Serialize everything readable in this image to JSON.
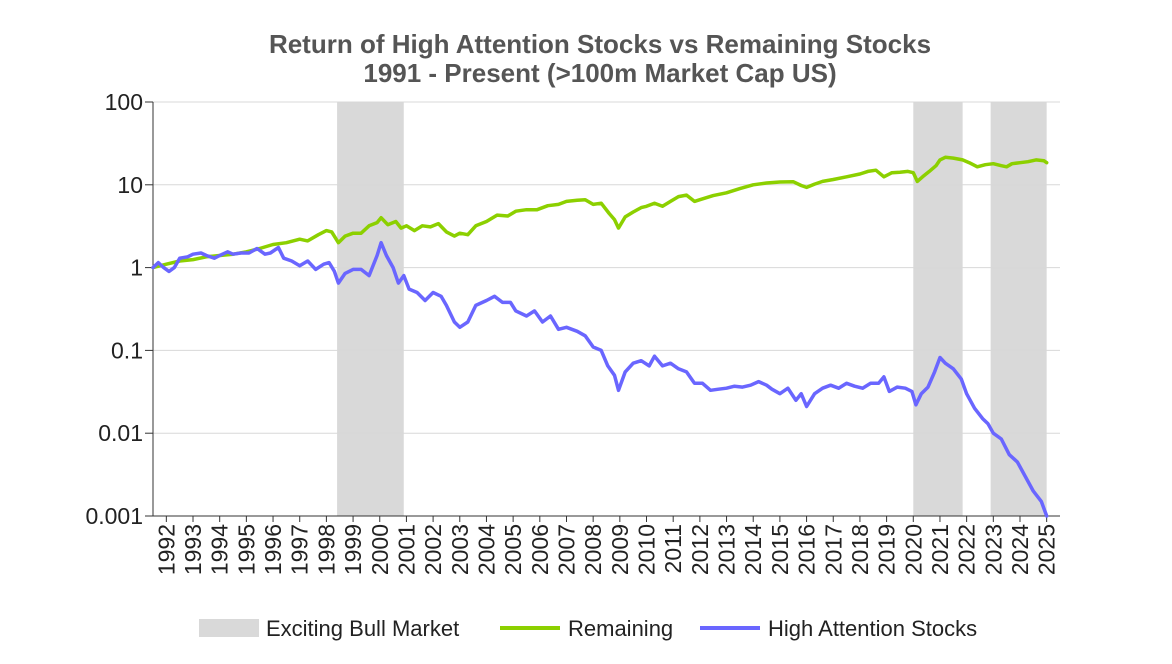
{
  "chart_data": {
    "type": "line",
    "title_line1": "Return of High Attention Stocks vs Remaining Stocks",
    "title_line2": "1991 - Present (>100m Market Cap US)",
    "xlabel": "",
    "ylabel": "",
    "y_scale": "log",
    "ylim": [
      0.001,
      100
    ],
    "xlim": [
      1991.5,
      2025.5
    ],
    "grid": true,
    "legend_position": "bottom",
    "y_ticks": [
      {
        "value": 100,
        "label": "100"
      },
      {
        "value": 10,
        "label": "10"
      },
      {
        "value": 1,
        "label": "1"
      },
      {
        "value": 0.1,
        "label": "0.1"
      },
      {
        "value": 0.01,
        "label": "0.01"
      },
      {
        "value": 0.001,
        "label": "0.001"
      }
    ],
    "x_ticks": [
      "1992",
      "1993",
      "1994",
      "1995",
      "1996",
      "1997",
      "1998",
      "1999",
      "2000",
      "2001",
      "2002",
      "2003",
      "2004",
      "2005",
      "2006",
      "2007",
      "2008",
      "2009",
      "2010",
      "2011",
      "2012",
      "2013",
      "2014",
      "2015",
      "2016",
      "2017",
      "2018",
      "2019",
      "2020",
      "2021",
      "2022",
      "2023",
      "2024",
      "2025"
    ],
    "shaded_periods": {
      "name": "Exciting Bull Market",
      "color": "#d9d9d9",
      "periods": [
        [
          1998.4,
          2000.9
        ],
        [
          2020.0,
          2021.85
        ],
        [
          2022.9,
          2025.0
        ]
      ]
    },
    "series": [
      {
        "name": "Remaining",
        "color": "#8cd000",
        "points": [
          [
            1991.5,
            1.0
          ],
          [
            1992.0,
            1.1
          ],
          [
            1992.5,
            1.2
          ],
          [
            1993.0,
            1.25
          ],
          [
            1993.5,
            1.35
          ],
          [
            1994.0,
            1.4
          ],
          [
            1994.5,
            1.45
          ],
          [
            1995.0,
            1.55
          ],
          [
            1995.5,
            1.7
          ],
          [
            1996.0,
            1.9
          ],
          [
            1996.5,
            2.0
          ],
          [
            1997.0,
            2.2
          ],
          [
            1997.3,
            2.1
          ],
          [
            1997.7,
            2.5
          ],
          [
            1998.0,
            2.8
          ],
          [
            1998.2,
            2.7
          ],
          [
            1998.45,
            2.0
          ],
          [
            1998.7,
            2.4
          ],
          [
            1999.0,
            2.6
          ],
          [
            1999.3,
            2.6
          ],
          [
            1999.6,
            3.2
          ],
          [
            1999.9,
            3.5
          ],
          [
            2000.05,
            4.0
          ],
          [
            2000.3,
            3.3
          ],
          [
            2000.6,
            3.6
          ],
          [
            2000.8,
            3.0
          ],
          [
            2001.0,
            3.2
          ],
          [
            2001.3,
            2.8
          ],
          [
            2001.6,
            3.2
          ],
          [
            2001.9,
            3.1
          ],
          [
            2002.2,
            3.4
          ],
          [
            2002.5,
            2.7
          ],
          [
            2002.8,
            2.4
          ],
          [
            2003.0,
            2.6
          ],
          [
            2003.3,
            2.5
          ],
          [
            2003.6,
            3.2
          ],
          [
            2004.0,
            3.6
          ],
          [
            2004.4,
            4.3
          ],
          [
            2004.8,
            4.2
          ],
          [
            2005.1,
            4.8
          ],
          [
            2005.5,
            5.0
          ],
          [
            2005.9,
            5.0
          ],
          [
            2006.3,
            5.6
          ],
          [
            2006.7,
            5.8
          ],
          [
            2007.0,
            6.3
          ],
          [
            2007.4,
            6.5
          ],
          [
            2007.7,
            6.6
          ],
          [
            2008.0,
            5.8
          ],
          [
            2008.3,
            6.0
          ],
          [
            2008.6,
            4.5
          ],
          [
            2008.8,
            3.8
          ],
          [
            2008.95,
            3.0
          ],
          [
            2009.2,
            4.1
          ],
          [
            2009.5,
            4.7
          ],
          [
            2009.8,
            5.3
          ],
          [
            2010.0,
            5.5
          ],
          [
            2010.3,
            6.0
          ],
          [
            2010.6,
            5.5
          ],
          [
            2010.9,
            6.3
          ],
          [
            2011.2,
            7.2
          ],
          [
            2011.5,
            7.5
          ],
          [
            2011.8,
            6.3
          ],
          [
            2012.0,
            6.6
          ],
          [
            2012.5,
            7.4
          ],
          [
            2013.0,
            8.0
          ],
          [
            2013.5,
            9.0
          ],
          [
            2014.0,
            10.0
          ],
          [
            2014.5,
            10.5
          ],
          [
            2015.0,
            10.8
          ],
          [
            2015.5,
            10.9
          ],
          [
            2015.8,
            9.8
          ],
          [
            2016.0,
            9.3
          ],
          [
            2016.3,
            10.2
          ],
          [
            2016.6,
            11.0
          ],
          [
            2017.0,
            11.6
          ],
          [
            2017.5,
            12.5
          ],
          [
            2018.0,
            13.5
          ],
          [
            2018.3,
            14.5
          ],
          [
            2018.6,
            15.0
          ],
          [
            2018.9,
            12.5
          ],
          [
            2019.2,
            14.0
          ],
          [
            2019.5,
            14.2
          ],
          [
            2019.8,
            14.5
          ],
          [
            2020.0,
            14.0
          ],
          [
            2020.15,
            11.0
          ],
          [
            2020.35,
            12.5
          ],
          [
            2020.6,
            14.5
          ],
          [
            2020.85,
            17.0
          ],
          [
            2021.0,
            20.0
          ],
          [
            2021.2,
            21.5
          ],
          [
            2021.5,
            21.0
          ],
          [
            2021.85,
            20.0
          ],
          [
            2022.1,
            18.5
          ],
          [
            2022.4,
            16.5
          ],
          [
            2022.7,
            17.5
          ],
          [
            2023.0,
            18.0
          ],
          [
            2023.3,
            17.0
          ],
          [
            2023.5,
            16.5
          ],
          [
            2023.7,
            18.0
          ],
          [
            2024.0,
            18.5
          ],
          [
            2024.3,
            19.0
          ],
          [
            2024.6,
            20.0
          ],
          [
            2024.9,
            19.5
          ],
          [
            2025.0,
            18.5
          ]
        ]
      },
      {
        "name": "High Attention Stocks",
        "color": "#6a66ff",
        "points": [
          [
            1991.5,
            1.0
          ],
          [
            1991.7,
            1.15
          ],
          [
            1991.9,
            1.0
          ],
          [
            1992.1,
            0.9
          ],
          [
            1992.3,
            1.0
          ],
          [
            1992.5,
            1.3
          ],
          [
            1992.8,
            1.35
          ],
          [
            1993.0,
            1.45
          ],
          [
            1993.3,
            1.5
          ],
          [
            1993.5,
            1.4
          ],
          [
            1993.8,
            1.3
          ],
          [
            1994.0,
            1.4
          ],
          [
            1994.3,
            1.55
          ],
          [
            1994.5,
            1.45
          ],
          [
            1994.8,
            1.5
          ],
          [
            1995.1,
            1.5
          ],
          [
            1995.4,
            1.7
          ],
          [
            1995.7,
            1.45
          ],
          [
            1995.9,
            1.5
          ],
          [
            1996.2,
            1.75
          ],
          [
            1996.4,
            1.3
          ],
          [
            1996.7,
            1.2
          ],
          [
            1997.0,
            1.05
          ],
          [
            1997.3,
            1.2
          ],
          [
            1997.6,
            0.95
          ],
          [
            1997.9,
            1.1
          ],
          [
            1998.1,
            1.15
          ],
          [
            1998.3,
            0.9
          ],
          [
            1998.45,
            0.65
          ],
          [
            1998.7,
            0.85
          ],
          [
            1999.0,
            0.95
          ],
          [
            1999.3,
            0.95
          ],
          [
            1999.6,
            0.8
          ],
          [
            1999.9,
            1.4
          ],
          [
            2000.05,
            2.0
          ],
          [
            2000.25,
            1.4
          ],
          [
            2000.5,
            1.0
          ],
          [
            2000.7,
            0.65
          ],
          [
            2000.9,
            0.8
          ],
          [
            2001.1,
            0.55
          ],
          [
            2001.4,
            0.5
          ],
          [
            2001.7,
            0.4
          ],
          [
            2002.0,
            0.5
          ],
          [
            2002.3,
            0.45
          ],
          [
            2002.5,
            0.35
          ],
          [
            2002.8,
            0.22
          ],
          [
            2003.0,
            0.19
          ],
          [
            2003.3,
            0.22
          ],
          [
            2003.6,
            0.35
          ],
          [
            2004.0,
            0.4
          ],
          [
            2004.3,
            0.45
          ],
          [
            2004.6,
            0.38
          ],
          [
            2004.9,
            0.38
          ],
          [
            2005.1,
            0.3
          ],
          [
            2005.5,
            0.26
          ],
          [
            2005.8,
            0.3
          ],
          [
            2006.1,
            0.22
          ],
          [
            2006.4,
            0.26
          ],
          [
            2006.7,
            0.18
          ],
          [
            2007.0,
            0.19
          ],
          [
            2007.4,
            0.17
          ],
          [
            2007.7,
            0.15
          ],
          [
            2008.0,
            0.11
          ],
          [
            2008.3,
            0.1
          ],
          [
            2008.55,
            0.065
          ],
          [
            2008.8,
            0.05
          ],
          [
            2008.95,
            0.033
          ],
          [
            2009.2,
            0.055
          ],
          [
            2009.5,
            0.07
          ],
          [
            2009.8,
            0.075
          ],
          [
            2010.1,
            0.065
          ],
          [
            2010.3,
            0.085
          ],
          [
            2010.6,
            0.065
          ],
          [
            2010.9,
            0.07
          ],
          [
            2011.2,
            0.06
          ],
          [
            2011.5,
            0.055
          ],
          [
            2011.8,
            0.04
          ],
          [
            2012.1,
            0.04
          ],
          [
            2012.4,
            0.033
          ],
          [
            2012.7,
            0.034
          ],
          [
            2013.0,
            0.035
          ],
          [
            2013.3,
            0.037
          ],
          [
            2013.6,
            0.036
          ],
          [
            2013.9,
            0.038
          ],
          [
            2014.2,
            0.042
          ],
          [
            2014.5,
            0.038
          ],
          [
            2014.7,
            0.034
          ],
          [
            2015.0,
            0.03
          ],
          [
            2015.3,
            0.035
          ],
          [
            2015.6,
            0.025
          ],
          [
            2015.8,
            0.03
          ],
          [
            2016.0,
            0.021
          ],
          [
            2016.3,
            0.03
          ],
          [
            2016.6,
            0.035
          ],
          [
            2016.9,
            0.038
          ],
          [
            2017.2,
            0.035
          ],
          [
            2017.5,
            0.04
          ],
          [
            2017.8,
            0.037
          ],
          [
            2018.1,
            0.035
          ],
          [
            2018.4,
            0.04
          ],
          [
            2018.7,
            0.04
          ],
          [
            2018.9,
            0.048
          ],
          [
            2019.1,
            0.032
          ],
          [
            2019.4,
            0.036
          ],
          [
            2019.7,
            0.035
          ],
          [
            2019.95,
            0.032
          ],
          [
            2020.1,
            0.022
          ],
          [
            2020.3,
            0.03
          ],
          [
            2020.55,
            0.036
          ],
          [
            2020.8,
            0.055
          ],
          [
            2021.0,
            0.082
          ],
          [
            2021.2,
            0.07
          ],
          [
            2021.5,
            0.06
          ],
          [
            2021.8,
            0.045
          ],
          [
            2022.0,
            0.03
          ],
          [
            2022.3,
            0.02
          ],
          [
            2022.6,
            0.015
          ],
          [
            2022.8,
            0.013
          ],
          [
            2023.0,
            0.01
          ],
          [
            2023.3,
            0.0085
          ],
          [
            2023.6,
            0.0055
          ],
          [
            2023.9,
            0.0045
          ],
          [
            2024.2,
            0.003
          ],
          [
            2024.5,
            0.002
          ],
          [
            2024.8,
            0.0015
          ],
          [
            2025.0,
            0.001
          ]
        ]
      }
    ]
  }
}
